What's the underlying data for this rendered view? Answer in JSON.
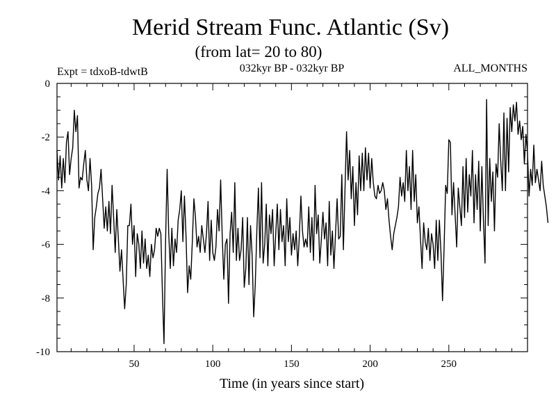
{
  "chart_data": {
    "type": "line",
    "title": "Merid Stream Func. Atlantic (Sv)",
    "subtitle": "(from lat= 20 to 80)",
    "expt_label": "Expt = tdxoB-tdwtB",
    "period_label": "032kyr BP - 032kyr BP",
    "months_label": "ALL_MONTHS",
    "xlabel": "Time (in years since start)",
    "ylabel": "",
    "xlim": [
      1,
      300
    ],
    "ylim": [
      -10,
      0
    ],
    "x_ticks": [
      50,
      100,
      150,
      200,
      250
    ],
    "y_ticks": [
      0,
      -2,
      -4,
      -6,
      -8,
      -10
    ],
    "x_tick_labels": [
      "50",
      "100",
      "150",
      "200",
      "250"
    ],
    "y_tick_labels": [
      "0",
      "-2",
      "-4",
      "-6",
      "-8",
      "-10"
    ],
    "grid": false,
    "series": [
      {
        "name": "",
        "x_start": 1,
        "x_step": 1,
        "y": [
          -2.5,
          -3.6,
          -2.7,
          -3.9,
          -2.8,
          -3.7,
          -2.2,
          -1.8,
          -3.4,
          -2.8,
          -2.4,
          -1.0,
          -1.8,
          -1.2,
          -3.9,
          -3.5,
          -3.6,
          -3.0,
          -2.5,
          -3.6,
          -4.0,
          -2.8,
          -3.8,
          -6.2,
          -5.0,
          -4.6,
          -4.1,
          -3.9,
          -3.2,
          -4.3,
          -5.4,
          -4.6,
          -5.5,
          -4.4,
          -5.6,
          -3.8,
          -5.0,
          -6.3,
          -4.7,
          -5.8,
          -7.0,
          -6.2,
          -7.3,
          -8.4,
          -7.5,
          -5.3,
          -5.3,
          -4.5,
          -6.0,
          -5.3,
          -7.2,
          -5.6,
          -6.0,
          -6.9,
          -5.5,
          -6.7,
          -5.8,
          -6.9,
          -6.4,
          -7.2,
          -6.0,
          -6.5,
          -6.2,
          -5.4,
          -5.7,
          -5.4,
          -5.6,
          -7.8,
          -9.7,
          -5.9,
          -3.2,
          -5.6,
          -6.9,
          -5.4,
          -6.8,
          -5.8,
          -6.3,
          -5.1,
          -4.7,
          -4.0,
          -5.9,
          -4.2,
          -5.7,
          -7.8,
          -6.8,
          -7.3,
          -5.9,
          -4.3,
          -5.0,
          -6.1,
          -5.7,
          -6.3,
          -5.3,
          -5.8,
          -6.3,
          -5.6,
          -4.4,
          -6.6,
          -5.1,
          -6.3,
          -6.6,
          -6.1,
          -4.7,
          -5.5,
          -3.6,
          -5.7,
          -7.3,
          -6.0,
          -5.8,
          -8.2,
          -5.6,
          -4.8,
          -6.3,
          -3.7,
          -6.6,
          -5.4,
          -6.6,
          -6.2,
          -5.0,
          -7.6,
          -6.9,
          -5.0,
          -7.5,
          -5.3,
          -6.4,
          -8.7,
          -7.5,
          -5.5,
          -3.9,
          -6.5,
          -3.7,
          -6.7,
          -6.0,
          -4.5,
          -6.8,
          -4.9,
          -5.6,
          -4.7,
          -6.8,
          -5.6,
          -4.5,
          -6.2,
          -4.7,
          -5.9,
          -5.3,
          -6.8,
          -4.3,
          -5.9,
          -5.0,
          -6.4,
          -5.6,
          -6.2,
          -5.5,
          -6.8,
          -5.7,
          -4.2,
          -5.5,
          -6.1,
          -5.8,
          -6.1,
          -4.6,
          -6.3,
          -5.0,
          -6.6,
          -3.8,
          -5.6,
          -4.9,
          -6.7,
          -5.8,
          -4.8,
          -5.8,
          -5.2,
          -6.8,
          -4.4,
          -6.4,
          -5.5,
          -6.9,
          -5.6,
          -4.3,
          -5.8,
          -5.7,
          -3.4,
          -6.2,
          -4.0,
          -1.8,
          -3.6,
          -2.5,
          -4.3,
          -3.1,
          -5.3,
          -3.7,
          -4.9,
          -2.7,
          -4.0,
          -2.6,
          -4.0,
          -2.4,
          -3.6,
          -2.6,
          -3.9,
          -2.8,
          -3.7,
          -4.2,
          -4.3,
          -3.8,
          -4.1,
          -4.0,
          -3.7,
          -4.0,
          -4.7,
          -4.3,
          -5.1,
          -5.7,
          -6.2,
          -5.6,
          -5.3,
          -5.0,
          -4.6,
          -3.5,
          -4.2,
          -3.7,
          -4.4,
          -2.5,
          -4.0,
          -3.1,
          -4.7,
          -2.5,
          -4.4,
          -3.4,
          -5.2,
          -4.6,
          -5.8,
          -6.9,
          -5.2,
          -5.9,
          -6.2,
          -5.4,
          -6.6,
          -5.6,
          -6.0,
          -6.9,
          -5.1,
          -6.6,
          -5.1,
          -6.3,
          -8.1,
          -6.1,
          -3.8,
          -4.1,
          -2.1,
          -2.2,
          -4.9,
          -3.7,
          -4.9,
          -6.1,
          -3.9,
          -4.6,
          -5.3,
          -3.1,
          -5.0,
          -2.8,
          -4.8,
          -3.4,
          -4.2,
          -2.5,
          -5.2,
          -3.4,
          -4.7,
          -2.9,
          -5.5,
          -3.1,
          -5.1,
          -6.7,
          -0.6,
          -5.3,
          -2.8,
          -4.4,
          -3.3,
          -5.5,
          -3.0,
          -3.5,
          -1.5,
          -2.9,
          -4.0,
          -1.1,
          -4.0,
          -1.3,
          -3.3,
          -0.9,
          -1.8,
          -0.8,
          -1.4,
          -0.7,
          -1.9,
          -1.4,
          -2.1,
          -1.6,
          -3.0,
          -1.9,
          -2.6,
          -4.2,
          -3.2,
          -3.8,
          -2.3,
          -3.7,
          -3.2,
          -3.6,
          -4.0,
          -2.9,
          -3.8,
          -4.2,
          -4.6,
          -5.2
        ]
      }
    ]
  }
}
